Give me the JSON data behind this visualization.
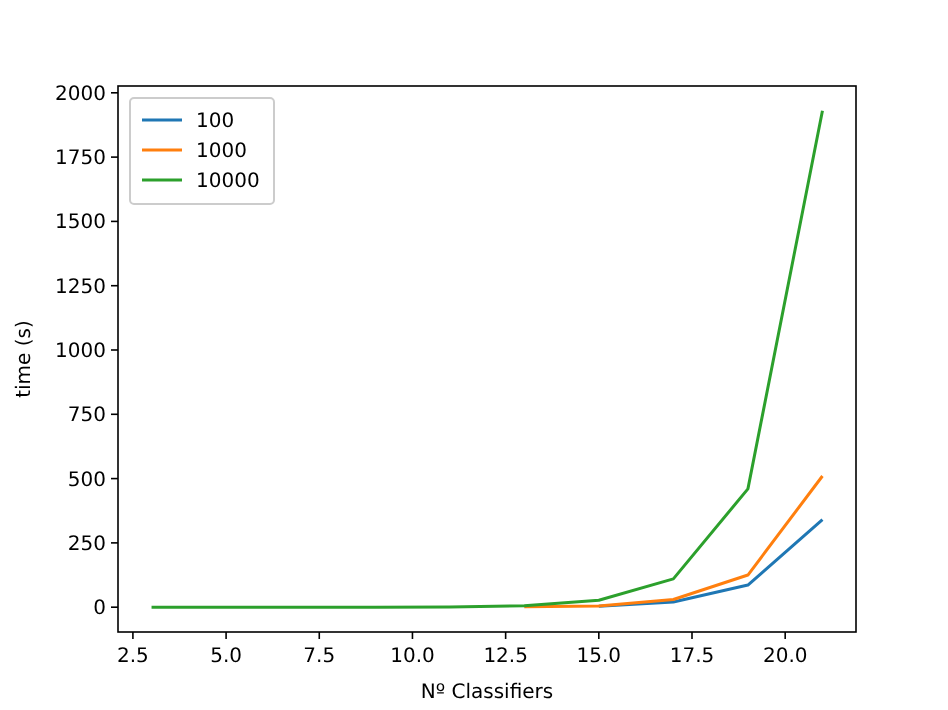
{
  "chart_data": {
    "type": "line",
    "xlabel": "Nº Classifiers",
    "ylabel": "time (s)",
    "x": [
      3,
      5,
      7,
      9,
      11,
      13,
      15,
      17,
      19,
      21
    ],
    "series": [
      {
        "name": "100",
        "color": "#1f77b4",
        "values": [
          null,
          null,
          null,
          null,
          null,
          null,
          4,
          20,
          86,
          340
        ]
      },
      {
        "name": "1000",
        "color": "#ff7f0e",
        "values": [
          null,
          null,
          null,
          null,
          null,
          2,
          5,
          30,
          125,
          510
        ]
      },
      {
        "name": "10000",
        "color": "#2ca02c",
        "values": [
          0,
          0,
          0,
          0,
          1,
          6,
          27,
          110,
          460,
          1930
        ]
      }
    ],
    "xlim": [
      2.1,
      21.9
    ],
    "xticks": [
      {
        "value": 2.5,
        "label": "2.5"
      },
      {
        "value": 5,
        "label": "5.0"
      },
      {
        "value": 7.5,
        "label": "7.5"
      },
      {
        "value": 10,
        "label": "10.0"
      },
      {
        "value": 12.5,
        "label": "12.5"
      },
      {
        "value": 15,
        "label": "15.0"
      },
      {
        "value": 17.5,
        "label": "17.5"
      },
      {
        "value": 20,
        "label": "20.0"
      }
    ],
    "ylim": [
      -96.5,
      2026.5
    ],
    "yticks": [
      0,
      250,
      500,
      750,
      1000,
      1250,
      1500,
      1750,
      2000
    ],
    "legend": "top left",
    "grid": false,
    "marker": "none",
    "line_style": "solid"
  }
}
